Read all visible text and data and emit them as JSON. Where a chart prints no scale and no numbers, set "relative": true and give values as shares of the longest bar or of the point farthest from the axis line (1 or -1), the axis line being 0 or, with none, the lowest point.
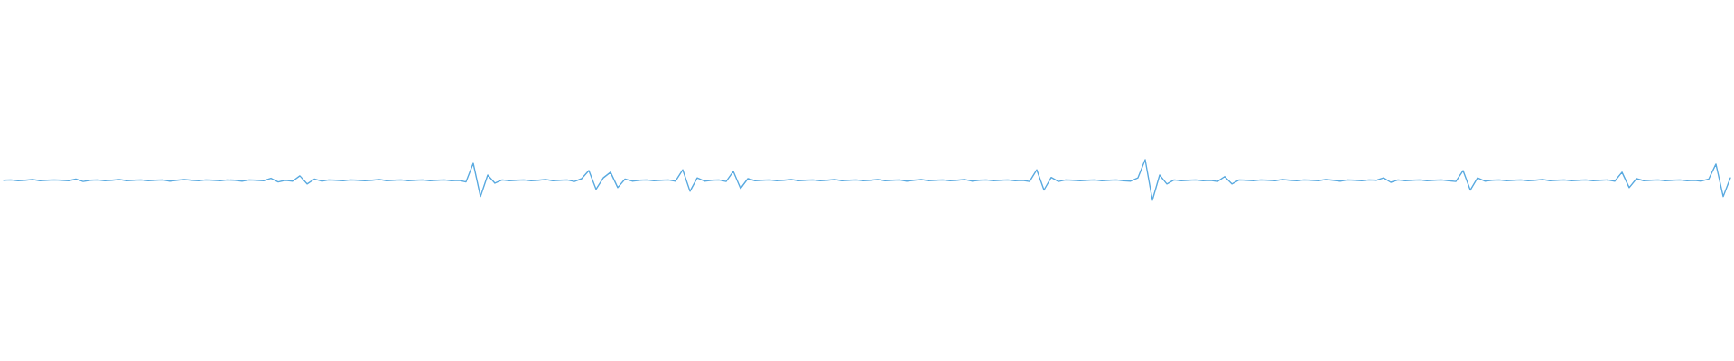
{
  "chart_data": {
    "type": "line",
    "relative": true,
    "color": "#5aaae0",
    "categories": [
      null,
      null,
      null,
      null,
      null,
      null,
      null,
      null,
      null,
      null,
      null,
      null,
      null,
      null,
      null,
      null,
      null,
      null,
      null,
      null,
      null,
      null,
      null,
      null,
      null,
      null,
      null,
      null,
      null,
      null,
      null,
      null,
      null,
      null,
      null,
      null,
      null,
      null,
      null,
      null,
      null,
      null,
      null,
      null,
      null,
      null,
      null,
      null,
      null,
      null,
      null,
      null,
      null,
      null,
      null,
      null,
      null,
      null,
      null,
      null,
      null,
      null,
      null,
      null,
      null,
      null,
      null,
      null,
      null,
      null,
      null,
      null,
      null,
      null,
      null,
      null,
      null,
      null,
      null,
      null,
      null,
      null,
      null,
      null,
      null,
      null,
      null,
      null,
      null,
      null,
      null,
      null,
      null,
      null,
      null,
      null,
      null,
      null,
      null,
      null,
      null,
      null,
      null,
      null,
      null,
      null,
      null,
      null,
      null,
      null,
      null,
      null,
      null,
      null,
      null,
      null,
      null,
      null,
      null,
      null,
      null,
      null,
      null,
      null,
      null,
      null,
      null,
      null,
      null,
      null,
      null,
      null,
      null,
      null,
      null,
      null,
      null,
      null,
      null,
      null,
      null,
      null,
      null,
      null,
      null,
      null,
      null,
      null,
      null,
      null,
      null,
      null,
      null,
      null,
      null,
      null,
      null,
      null,
      null,
      null,
      null,
      null,
      null,
      null,
      null,
      null,
      null,
      null,
      null,
      null,
      null,
      null,
      null,
      null,
      null,
      null,
      null,
      null,
      null,
      null,
      null,
      null,
      null,
      null,
      null,
      null,
      null,
      null,
      null,
      null,
      null,
      null,
      null,
      null,
      null,
      null,
      null,
      null,
      null,
      null,
      null,
      null,
      null,
      null,
      null,
      null,
      null,
      null,
      null,
      null,
      null,
      null,
      null,
      null,
      null,
      null,
      null,
      null,
      null,
      null,
      null,
      null,
      null,
      null,
      null,
      null,
      null,
      null,
      null,
      null,
      null,
      null,
      null,
      null,
      null,
      null,
      null,
      null,
      null,
      null
    ],
    "values": [
      0.49,
      0.5,
      0.48,
      0.49,
      0.51,
      0.48,
      0.49,
      0.5,
      0.49,
      0.48,
      0.52,
      0.46,
      0.49,
      0.5,
      0.48,
      0.49,
      0.51,
      0.48,
      0.49,
      0.5,
      0.48,
      0.49,
      0.5,
      0.47,
      0.49,
      0.51,
      0.49,
      0.48,
      0.5,
      0.49,
      0.48,
      0.5,
      0.49,
      0.47,
      0.5,
      0.49,
      0.48,
      0.54,
      0.45,
      0.49,
      0.47,
      0.6,
      0.4,
      0.52,
      0.47,
      0.5,
      0.49,
      0.48,
      0.5,
      0.49,
      0.48,
      0.49,
      0.51,
      0.48,
      0.49,
      0.5,
      0.48,
      0.49,
      0.5,
      0.48,
      0.49,
      0.5,
      0.48,
      0.49,
      0.45,
      0.91,
      0.09,
      0.62,
      0.42,
      0.5,
      0.48,
      0.49,
      0.5,
      0.48,
      0.49,
      0.51,
      0.48,
      0.49,
      0.5,
      0.46,
      0.53,
      0.73,
      0.27,
      0.55,
      0.69,
      0.31,
      0.52,
      0.47,
      0.49,
      0.5,
      0.48,
      0.49,
      0.5,
      0.47,
      0.75,
      0.22,
      0.55,
      0.47,
      0.49,
      0.5,
      0.46,
      0.71,
      0.29,
      0.53,
      0.48,
      0.49,
      0.5,
      0.48,
      0.49,
      0.51,
      0.48,
      0.49,
      0.5,
      0.48,
      0.49,
      0.51,
      0.48,
      0.49,
      0.5,
      0.48,
      0.49,
      0.51,
      0.48,
      0.49,
      0.5,
      0.47,
      0.49,
      0.51,
      0.48,
      0.49,
      0.5,
      0.48,
      0.49,
      0.51,
      0.47,
      0.49,
      0.5,
      0.48,
      0.49,
      0.5,
      0.48,
      0.49,
      0.46,
      0.75,
      0.25,
      0.56,
      0.46,
      0.5,
      0.49,
      0.48,
      0.49,
      0.5,
      0.48,
      0.49,
      0.5,
      0.48,
      0.47,
      0.55,
      1.0,
      0.0,
      0.62,
      0.4,
      0.5,
      0.48,
      0.49,
      0.5,
      0.48,
      0.49,
      0.46,
      0.58,
      0.4,
      0.5,
      0.49,
      0.48,
      0.5,
      0.49,
      0.48,
      0.51,
      0.49,
      0.48,
      0.5,
      0.49,
      0.48,
      0.51,
      0.49,
      0.47,
      0.5,
      0.49,
      0.48,
      0.5,
      0.49,
      0.55,
      0.44,
      0.5,
      0.48,
      0.49,
      0.5,
      0.48,
      0.49,
      0.5,
      0.48,
      0.46,
      0.73,
      0.25,
      0.55,
      0.47,
      0.49,
      0.5,
      0.48,
      0.49,
      0.5,
      0.48,
      0.49,
      0.51,
      0.48,
      0.49,
      0.5,
      0.48,
      0.49,
      0.5,
      0.48,
      0.49,
      0.5,
      0.47,
      0.69,
      0.31,
      0.53,
      0.48,
      0.49,
      0.5,
      0.48,
      0.49,
      0.5,
      0.48,
      0.49,
      0.47,
      0.52,
      0.89,
      0.09,
      0.55
    ]
  }
}
